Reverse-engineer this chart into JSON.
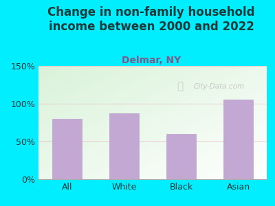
{
  "title": "Change in non-family household\nincome between 2000 and 2022",
  "subtitle": "Delmar, NY",
  "categories": [
    "All",
    "White",
    "Black",
    "Asian"
  ],
  "values": [
    80,
    87,
    60,
    105
  ],
  "bar_color": "#c4a8d4",
  "title_color": "#1a3a3a",
  "subtitle_color": "#7a5c8a",
  "background_outer": "#00eeff",
  "ylim": [
    0,
    150
  ],
  "yticks": [
    0,
    50,
    100,
    150
  ],
  "ytick_labels": [
    "0%",
    "50%",
    "100%",
    "150%"
  ],
  "watermark": "City-Data.com",
  "title_fontsize": 12,
  "subtitle_fontsize": 10,
  "tick_fontsize": 9
}
